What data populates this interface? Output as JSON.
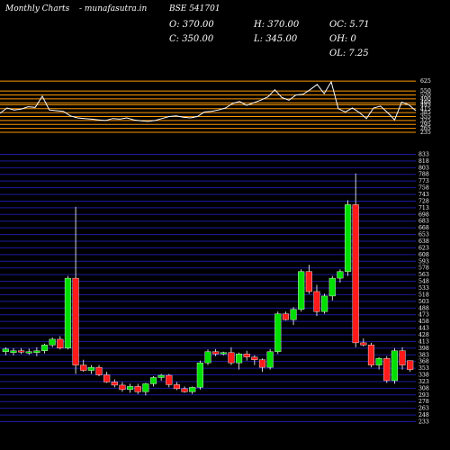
{
  "header": {
    "brand": "Monthly Charts",
    "site": "- munafasutra.in",
    "symbol": "BSE 541701",
    "open_label": "O: 370.00",
    "high_label": "H: 370.00",
    "osc_label": "OC: 5.71",
    "close_label": "C: 350.00",
    "low_label": "L: 345.00",
    "oh_label": "OH: 0",
    "ol_label": "OL: 7.25"
  },
  "colors": {
    "up": "#00e000",
    "down": "#ff1a1a",
    "grid": "#1a1aa0",
    "indicator_line": "#ff9900",
    "background": "#000000"
  },
  "chart_data": [
    {
      "type": "line",
      "title": "",
      "y_tick_labels": [
        "625",
        "550",
        "520",
        "490",
        "460",
        "445",
        "415",
        "385",
        "355",
        "325",
        "295",
        "265",
        "235"
      ],
      "ylim": [
        235,
        640
      ],
      "grid": true,
      "series": [
        {
          "values": [
            380,
            420,
            405,
            412,
            430,
            425,
            510,
            405,
            400,
            395,
            360,
            345,
            340,
            335,
            330,
            325,
            340,
            335,
            345,
            330,
            322,
            318,
            325,
            340,
            355,
            360,
            350,
            345,
            355,
            390,
            395,
            405,
            420,
            455,
            470,
            440,
            460,
            480,
            505,
            560,
            500,
            480,
            520,
            525,
            560,
            600,
            530,
            620,
            415,
            390,
            420,
            385,
            340,
            420,
            435,
            385,
            330,
            465,
            445,
            400
          ]
        }
      ]
    },
    {
      "type": "candlestick",
      "title": "",
      "y_tick_labels": [
        "833",
        "818",
        "803",
        "788",
        "773",
        "758",
        "743",
        "728",
        "713",
        "698",
        "683",
        "668",
        "653",
        "638",
        "623",
        "608",
        "593",
        "578",
        "563",
        "548",
        "533",
        "518",
        "503",
        "488",
        "473",
        "458",
        "443",
        "428",
        "413",
        "398",
        "383",
        "368",
        "353",
        "338",
        "323",
        "308",
        "293",
        "278",
        "263",
        "248",
        "233"
      ],
      "ylim": [
        230,
        840
      ],
      "grid": true,
      "candles": [
        {
          "o": 390,
          "h": 400,
          "l": 382,
          "c": 396
        },
        {
          "o": 388,
          "h": 398,
          "l": 382,
          "c": 392
        },
        {
          "o": 392,
          "h": 398,
          "l": 385,
          "c": 389
        },
        {
          "o": 389,
          "h": 397,
          "l": 383,
          "c": 390
        },
        {
          "o": 388,
          "h": 400,
          "l": 380,
          "c": 392
        },
        {
          "o": 392,
          "h": 408,
          "l": 386,
          "c": 405
        },
        {
          "o": 405,
          "h": 422,
          "l": 400,
          "c": 418
        },
        {
          "o": 418,
          "h": 425,
          "l": 395,
          "c": 398
        },
        {
          "o": 398,
          "h": 560,
          "l": 395,
          "c": 555
        },
        {
          "o": 555,
          "h": 715,
          "l": 340,
          "c": 360
        },
        {
          "o": 360,
          "h": 372,
          "l": 345,
          "c": 348
        },
        {
          "o": 348,
          "h": 360,
          "l": 340,
          "c": 355
        },
        {
          "o": 355,
          "h": 360,
          "l": 335,
          "c": 338
        },
        {
          "o": 338,
          "h": 345,
          "l": 320,
          "c": 322
        },
        {
          "o": 322,
          "h": 328,
          "l": 310,
          "c": 315
        },
        {
          "o": 315,
          "h": 322,
          "l": 300,
          "c": 305
        },
        {
          "o": 305,
          "h": 318,
          "l": 298,
          "c": 312
        },
        {
          "o": 312,
          "h": 318,
          "l": 295,
          "c": 300
        },
        {
          "o": 300,
          "h": 320,
          "l": 292,
          "c": 318
        },
        {
          "o": 318,
          "h": 335,
          "l": 312,
          "c": 332
        },
        {
          "o": 332,
          "h": 340,
          "l": 325,
          "c": 337
        },
        {
          "o": 337,
          "h": 340,
          "l": 310,
          "c": 316
        },
        {
          "o": 316,
          "h": 322,
          "l": 304,
          "c": 307
        },
        {
          "o": 307,
          "h": 312,
          "l": 298,
          "c": 300
        },
        {
          "o": 300,
          "h": 312,
          "l": 295,
          "c": 310
        },
        {
          "o": 310,
          "h": 370,
          "l": 305,
          "c": 365
        },
        {
          "o": 365,
          "h": 395,
          "l": 360,
          "c": 390
        },
        {
          "o": 390,
          "h": 396,
          "l": 380,
          "c": 385
        },
        {
          "o": 385,
          "h": 390,
          "l": 382,
          "c": 388
        },
        {
          "o": 388,
          "h": 400,
          "l": 360,
          "c": 365
        },
        {
          "o": 365,
          "h": 388,
          "l": 350,
          "c": 385
        },
        {
          "o": 385,
          "h": 392,
          "l": 370,
          "c": 378
        },
        {
          "o": 378,
          "h": 382,
          "l": 360,
          "c": 372
        },
        {
          "o": 372,
          "h": 375,
          "l": 345,
          "c": 355
        },
        {
          "o": 355,
          "h": 396,
          "l": 350,
          "c": 390
        },
        {
          "o": 390,
          "h": 480,
          "l": 385,
          "c": 475
        },
        {
          "o": 475,
          "h": 480,
          "l": 460,
          "c": 462
        },
        {
          "o": 462,
          "h": 490,
          "l": 450,
          "c": 485
        },
        {
          "o": 485,
          "h": 575,
          "l": 480,
          "c": 570
        },
        {
          "o": 570,
          "h": 585,
          "l": 520,
          "c": 525
        },
        {
          "o": 525,
          "h": 540,
          "l": 470,
          "c": 480
        },
        {
          "o": 480,
          "h": 520,
          "l": 475,
          "c": 515
        },
        {
          "o": 515,
          "h": 560,
          "l": 505,
          "c": 555
        },
        {
          "o": 555,
          "h": 575,
          "l": 545,
          "c": 570
        },
        {
          "o": 570,
          "h": 730,
          "l": 560,
          "c": 720
        },
        {
          "o": 720,
          "h": 790,
          "l": 400,
          "c": 410
        },
        {
          "o": 410,
          "h": 420,
          "l": 402,
          "c": 405
        },
        {
          "o": 405,
          "h": 410,
          "l": 355,
          "c": 360
        },
        {
          "o": 360,
          "h": 378,
          "l": 350,
          "c": 375
        },
        {
          "o": 375,
          "h": 380,
          "l": 320,
          "c": 325
        },
        {
          "o": 325,
          "h": 398,
          "l": 318,
          "c": 392
        },
        {
          "o": 392,
          "h": 400,
          "l": 350,
          "c": 360
        },
        {
          "o": 370,
          "h": 370,
          "l": 345,
          "c": 350
        }
      ]
    }
  ]
}
